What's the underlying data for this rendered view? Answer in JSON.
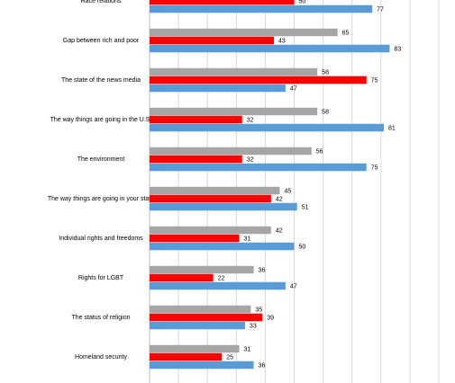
{
  "chart_data": {
    "type": "bar",
    "orientation": "horizontal",
    "categories": [
      "Race relations",
      "Gap between rich and poor",
      "The state of the news media",
      "The way things are going in the U.S.",
      "The environment",
      "The way things are going in your state",
      "Individual rights and freedoms",
      "Rights for LGBT",
      "The status of religion",
      "Homeland security"
    ],
    "series": [
      {
        "color": "#a5a5a5",
        "values": [
          null,
          65,
          58,
          58,
          56,
          45,
          42,
          36,
          35,
          31
        ]
      },
      {
        "color": "#ff0000",
        "values": [
          50,
          43,
          75,
          32,
          32,
          42,
          31,
          22,
          39,
          25
        ]
      },
      {
        "color": "#5b9bd5",
        "values": [
          77,
          83,
          47,
          81,
          75,
          51,
          50,
          47,
          33,
          36
        ]
      }
    ],
    "xlim": [
      0,
      100
    ],
    "xticks": [
      0,
      10,
      20,
      30,
      40,
      50,
      60,
      70,
      80,
      90,
      100
    ],
    "grid": true
  }
}
